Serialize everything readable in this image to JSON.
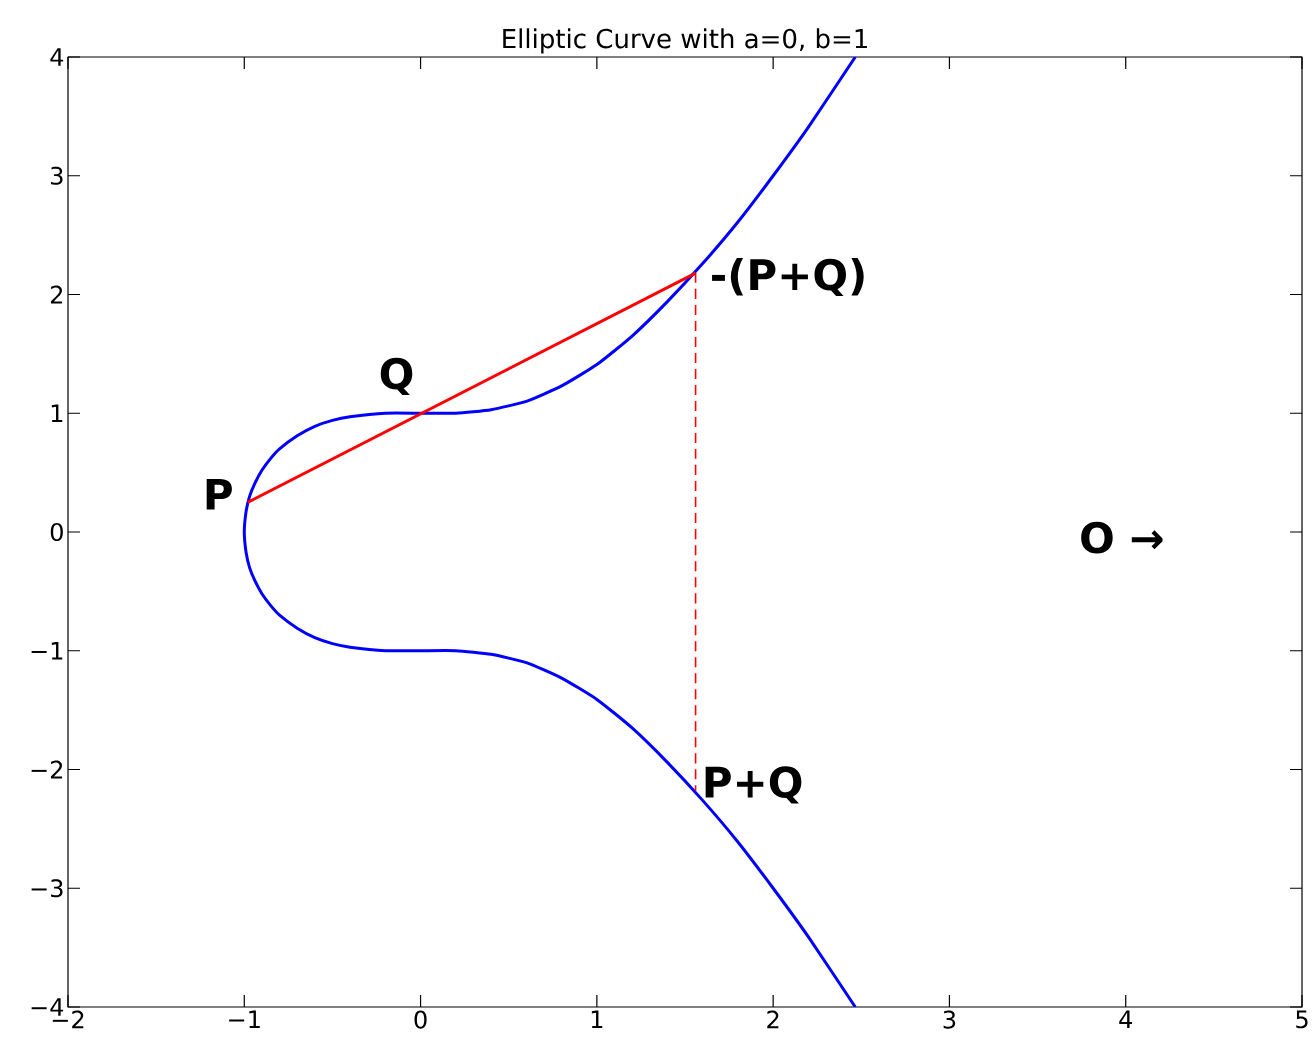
{
  "chart_data": {
    "type": "line",
    "title": "Elliptic Curve with a=0, b=1",
    "xlim": [
      -2,
      5
    ],
    "ylim": [
      -4,
      4
    ],
    "xticks": [
      {
        "value": -2,
        "label": "−2"
      },
      {
        "value": -1,
        "label": "−1"
      },
      0,
      1,
      2,
      3,
      4,
      5
    ],
    "yticks": [
      {
        "value": -4,
        "label": "−4"
      },
      {
        "value": -3,
        "label": "−3"
      },
      {
        "value": -2,
        "label": "−2"
      },
      {
        "value": -1,
        "label": "−1"
      },
      0,
      1,
      2,
      3,
      4
    ],
    "marker": "none",
    "series": [
      {
        "color": "#0000ff",
        "line_style": "solid",
        "x": [
          2.466,
          2.2,
          2.0,
          1.8,
          1.6,
          1.4,
          1.2,
          1.0,
          0.8,
          0.6,
          0.4,
          0.2,
          0,
          -0.2,
          -0.4,
          -0.5,
          -0.6,
          -0.7,
          -0.8,
          -0.85,
          -0.9,
          -0.94,
          -0.97,
          -0.99,
          -1,
          -0.99,
          -0.97,
          -0.94,
          -0.9,
          -0.85,
          -0.8,
          -0.7,
          -0.6,
          -0.5,
          -0.4,
          -0.2,
          0,
          0.2,
          0.4,
          0.6,
          0.8,
          1.0,
          1.2,
          1.4,
          1.6,
          1.8,
          2.0,
          2.2,
          2.466
        ],
        "values": [
          -4.0,
          -3.41,
          -3.0,
          -2.61,
          -2.26,
          -1.94,
          -1.65,
          -1.41,
          -1.23,
          -1.1,
          -1.03,
          -1.0,
          -1.0,
          -1.0,
          -0.97,
          -0.94,
          -0.89,
          -0.81,
          -0.7,
          -0.62,
          -0.52,
          -0.41,
          -0.3,
          -0.17,
          0,
          0.17,
          0.3,
          0.41,
          0.52,
          0.62,
          0.7,
          0.81,
          0.89,
          0.94,
          0.97,
          1.0,
          1.0,
          1.0,
          1.03,
          1.1,
          1.23,
          1.41,
          1.65,
          1.94,
          2.26,
          2.61,
          3.0,
          3.41,
          4.0
        ]
      },
      {
        "color": "#ff0000",
        "line_style": "solid",
        "x": [
          -0.98,
          1.56
        ],
        "values": [
          0.25,
          2.18
        ]
      },
      {
        "color": "#ff0000",
        "line_style": "dashed",
        "x": [
          1.56,
          1.56
        ],
        "values": [
          2.18,
          -2.18
        ]
      }
    ],
    "annotations": [
      {
        "text": "P",
        "x": -0.98,
        "y": 0.25
      },
      {
        "text": "Q",
        "x": 0,
        "y": 1
      },
      {
        "text": "-(P+Q)",
        "x": 1.56,
        "y": 2.18
      },
      {
        "text": "P+Q",
        "x": 1.56,
        "y": -2.18
      },
      "O →"
    ]
  }
}
